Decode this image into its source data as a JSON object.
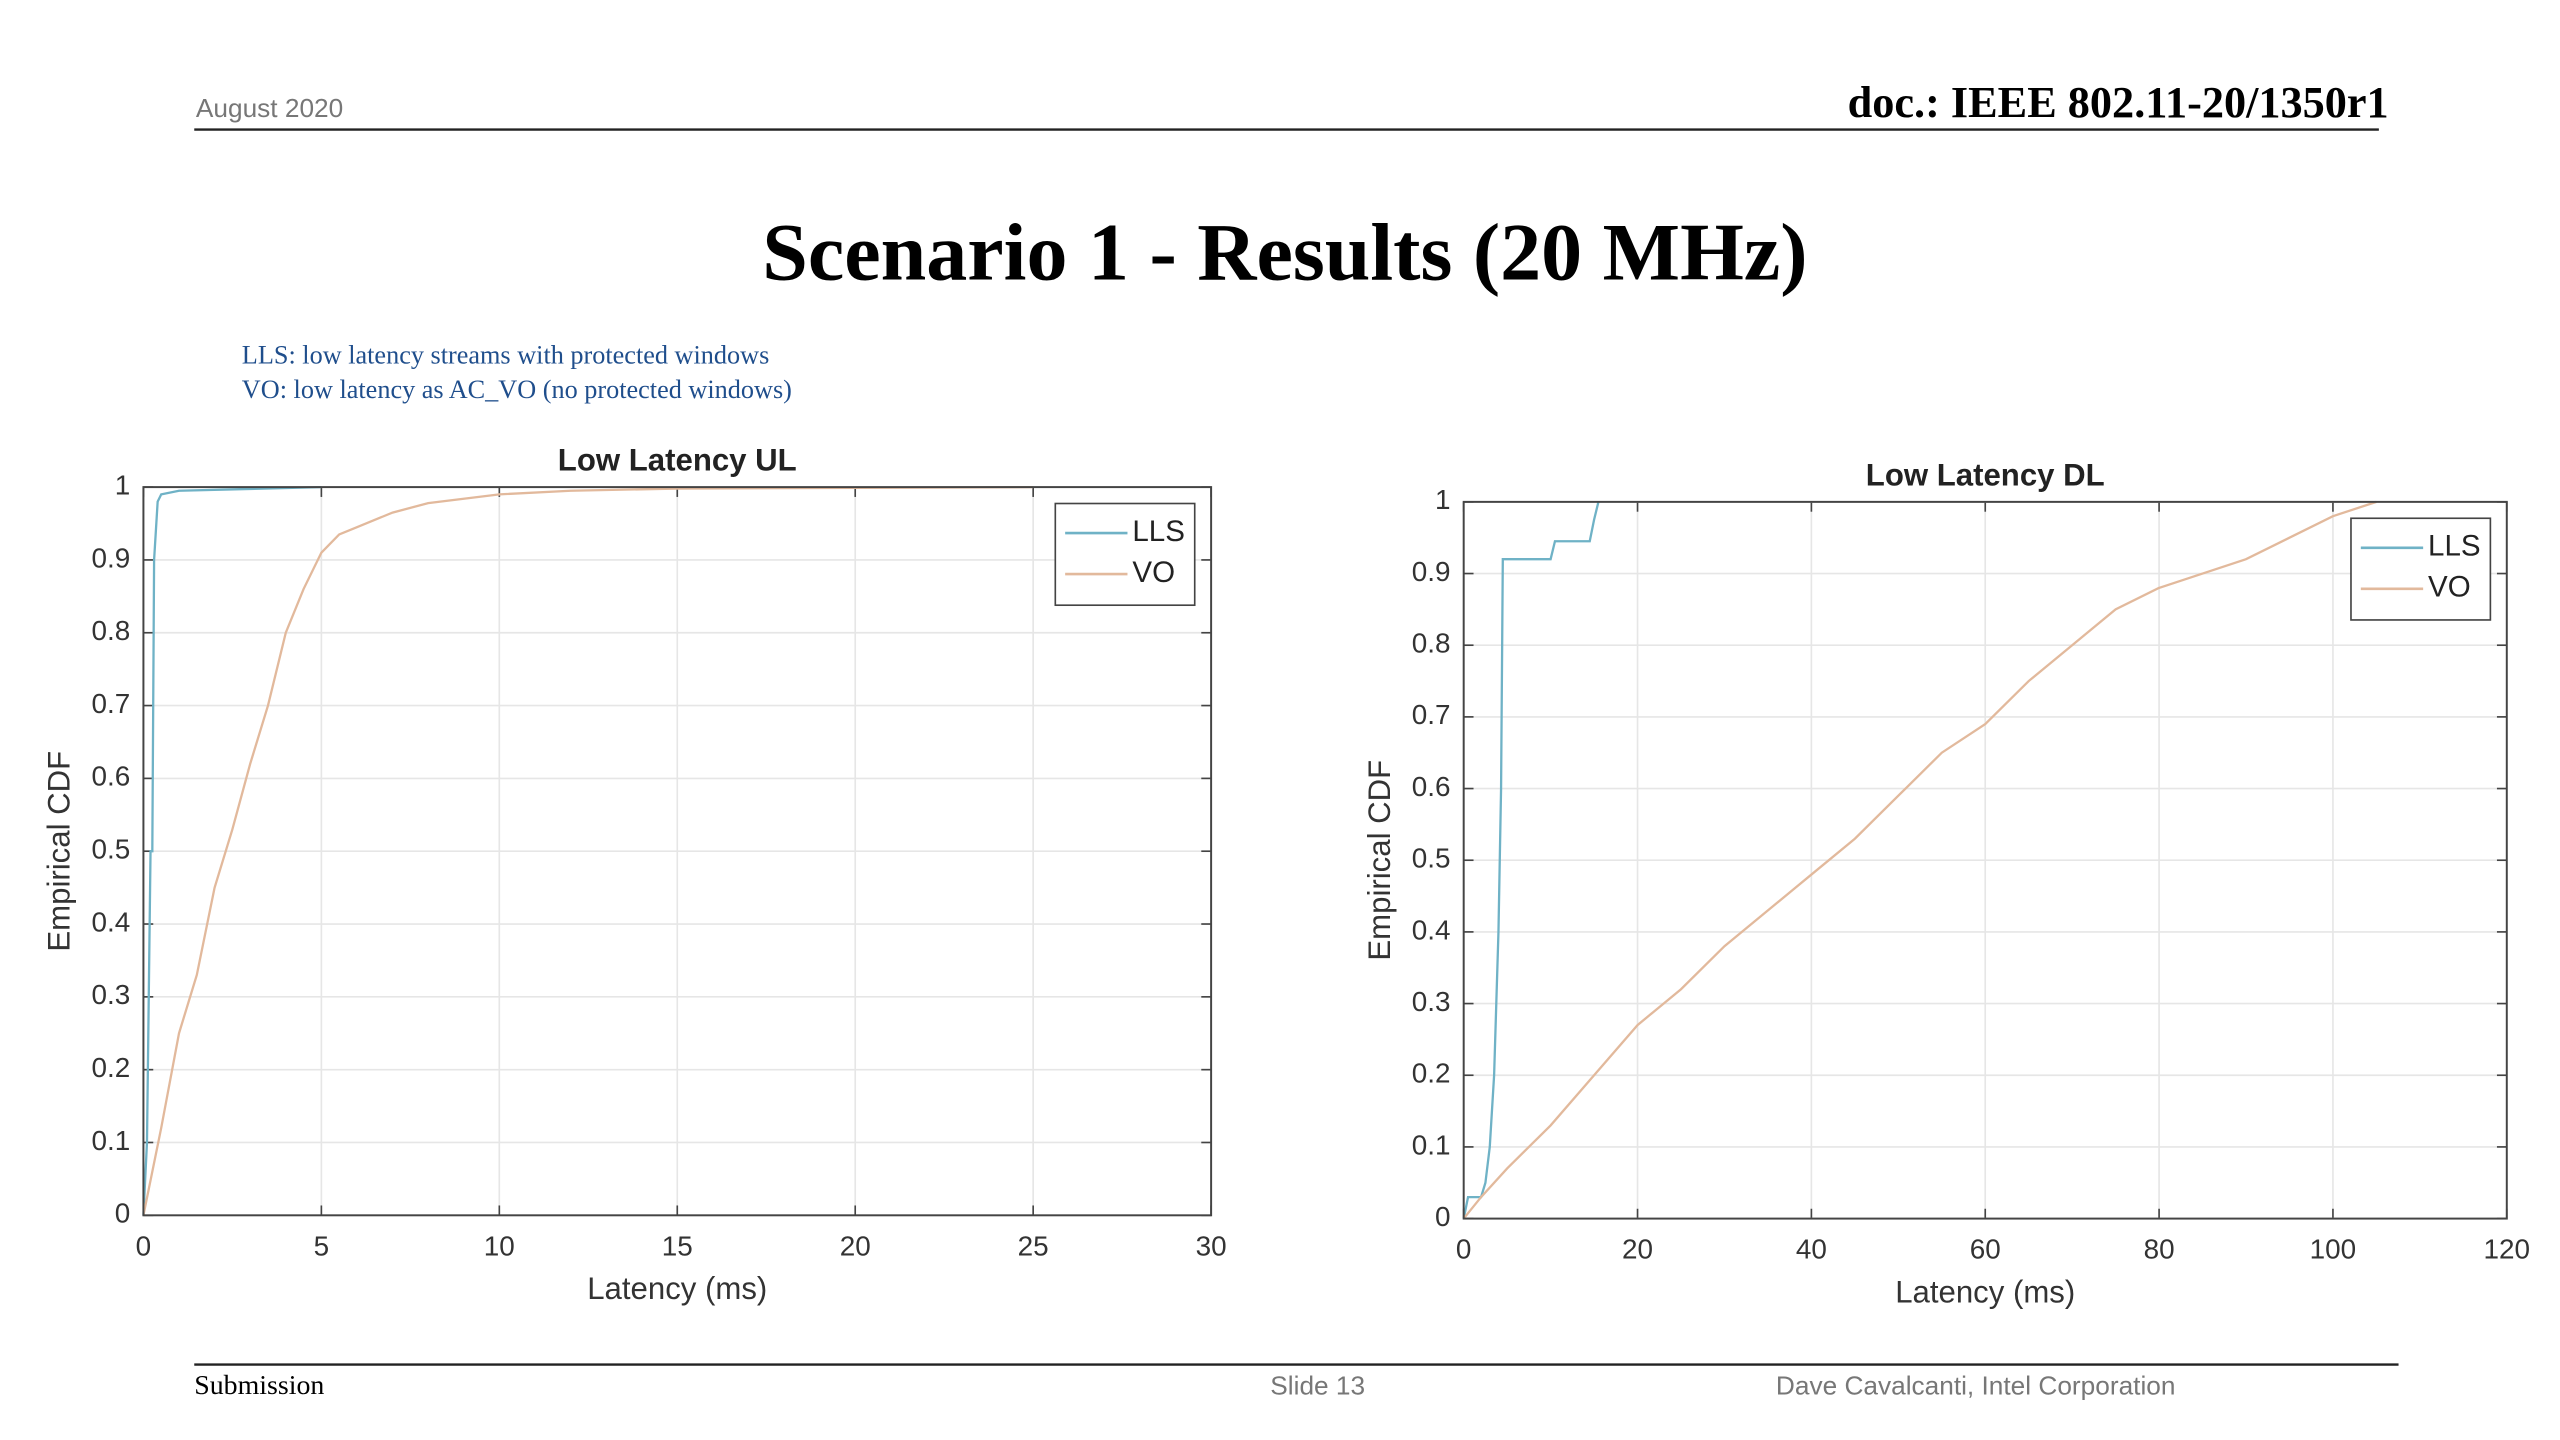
{
  "header": {
    "date": "August 2020",
    "doc": "doc.: IEEE 802.11-20/1350r1"
  },
  "title": "Scenario 1 - Results (20 MHz)",
  "notes": [
    "LLS: low latency streams with protected windows",
    "VO: low latency as AC_VO (no protected windows)"
  ],
  "chart_data": [
    {
      "type": "line",
      "title": "Low Latency UL",
      "x_label": "Latency (ms)",
      "y_label": "Empirical CDF",
      "xlim": [
        0,
        30
      ],
      "ylim": [
        0,
        1
      ],
      "xticks": [
        0,
        5,
        10,
        15,
        20,
        25,
        30
      ],
      "yticks": [
        0,
        0.1,
        0.2,
        0.3,
        0.4,
        0.5,
        0.6,
        0.7,
        0.8,
        0.9,
        1
      ],
      "grid": true,
      "legend": "northeast",
      "series": [
        {
          "name": "LLS",
          "color": "#6fb2c6",
          "x": [
            0,
            0.1,
            0.15,
            0.2,
            0.25,
            0.3,
            0.4,
            0.5,
            1,
            5
          ],
          "values": [
            0,
            0.1,
            0.3,
            0.5,
            0.5,
            0.9,
            0.98,
            0.99,
            0.995,
            1
          ]
        },
        {
          "name": "VO",
          "color": "#e2b99c",
          "x": [
            0,
            0.5,
            1,
            1.5,
            2,
            2.5,
            3,
            3.5,
            4,
            4.5,
            5,
            5.5,
            6,
            7,
            8,
            10,
            12,
            15,
            20,
            25
          ],
          "values": [
            0,
            0.12,
            0.25,
            0.33,
            0.45,
            0.53,
            0.62,
            0.7,
            0.8,
            0.86,
            0.91,
            0.935,
            0.945,
            0.965,
            0.978,
            0.99,
            0.995,
            0.998,
            0.999,
            1
          ]
        }
      ]
    },
    {
      "type": "line",
      "title": "Low Latency DL",
      "x_label": "Latency (ms)",
      "y_label": "Empirical CDF",
      "xlim": [
        0,
        120
      ],
      "ylim": [
        0,
        1
      ],
      "xticks": [
        0,
        20,
        40,
        60,
        80,
        100,
        120
      ],
      "yticks": [
        0,
        0.1,
        0.2,
        0.3,
        0.4,
        0.5,
        0.6,
        0.7,
        0.8,
        0.9,
        1
      ],
      "grid": true,
      "legend": "northeast",
      "series": [
        {
          "name": "LLS",
          "color": "#6fb2c6",
          "x": [
            0,
            0.5,
            2,
            2.5,
            3,
            3.5,
            4,
            4.3,
            4.5,
            10,
            10.5,
            14.5,
            15,
            15.5
          ],
          "values": [
            0,
            0.03,
            0.03,
            0.05,
            0.1,
            0.2,
            0.4,
            0.6,
            0.92,
            0.92,
            0.945,
            0.945,
            0.975,
            1
          ]
        },
        {
          "name": "VO",
          "color": "#e2b99c",
          "x": [
            0,
            2,
            5,
            10,
            15,
            20,
            25,
            30,
            35,
            40,
            45,
            50,
            55,
            60,
            65,
            70,
            75,
            80,
            85,
            90,
            95,
            100,
            105
          ],
          "values": [
            0,
            0.03,
            0.07,
            0.13,
            0.2,
            0.27,
            0.32,
            0.38,
            0.43,
            0.48,
            0.53,
            0.59,
            0.65,
            0.69,
            0.75,
            0.8,
            0.85,
            0.88,
            0.9,
            0.92,
            0.95,
            0.98,
            1
          ]
        }
      ]
    }
  ],
  "footer": {
    "left": "Submission",
    "center": "Slide 13",
    "right": "Dave Cavalcanti, Intel Corporation"
  }
}
